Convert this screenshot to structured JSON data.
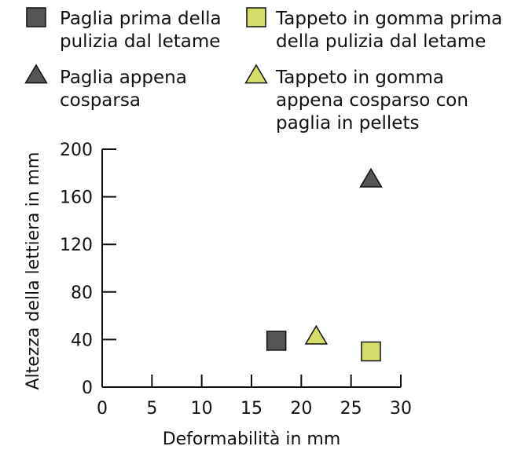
{
  "chart_data": {
    "type": "scatter",
    "title": "",
    "xlabel": "Deformabilità in mm",
    "ylabel": "Altezza della lettiera in mm",
    "xlim": [
      0,
      30
    ],
    "ylim": [
      0,
      200
    ],
    "xticks": [
      0,
      5,
      10,
      15,
      20,
      25,
      30
    ],
    "yticks": [
      0,
      40,
      80,
      120,
      160,
      200
    ],
    "grid": false,
    "legend_position": "top",
    "series": [
      {
        "name": "Paglia prima della pulizia dal letame",
        "lines": [
          "Paglia prima della",
          "pulizia dal letame"
        ],
        "marker": "square",
        "color": "#555555",
        "points": [
          {
            "x": 17.5,
            "y": 39
          }
        ]
      },
      {
        "name": "Paglia appena cosparsa",
        "lines": [
          "Paglia appena",
          "cosparsa"
        ],
        "marker": "triangle",
        "color": "#555555",
        "points": [
          {
            "x": 27,
            "y": 174
          }
        ]
      },
      {
        "name": "Tappeto in gomma prima della pulizia dal letame",
        "lines": [
          "Tappeto in gomma prima",
          "della pulizia dal letame"
        ],
        "marker": "square",
        "color": "#d6dc6a",
        "points": [
          {
            "x": 27,
            "y": 30
          }
        ]
      },
      {
        "name": "Tappeto in gomma appena cosparso con paglia in pellets",
        "lines": [
          "Tappeto in gomma",
          "appena cosparso con",
          "paglia in pellets"
        ],
        "marker": "triangle",
        "color": "#d6dc6a",
        "points": [
          {
            "x": 21.5,
            "y": 42
          }
        ]
      }
    ]
  }
}
